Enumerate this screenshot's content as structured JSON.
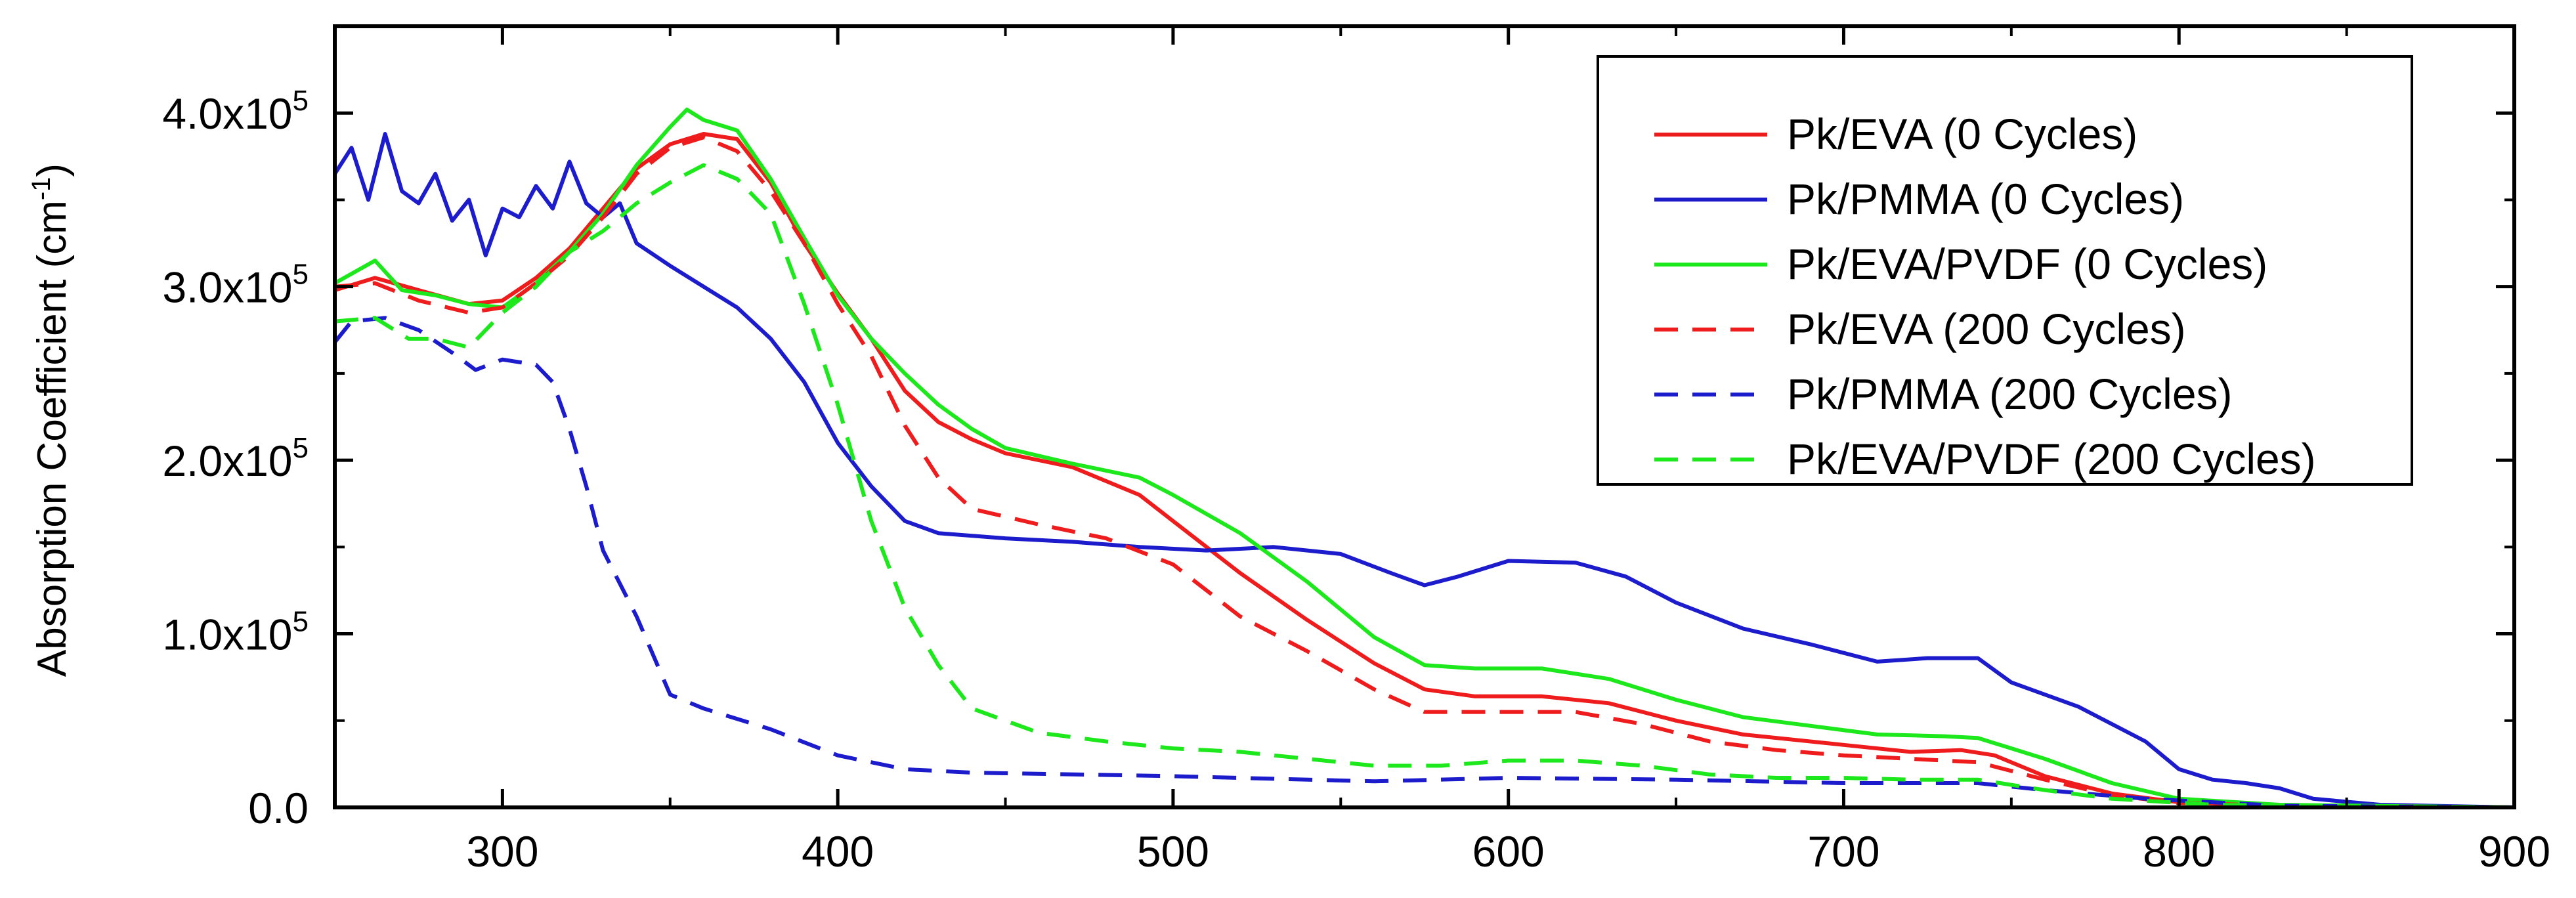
{
  "chart_data": {
    "type": "line",
    "title": "",
    "xlabel": "",
    "ylabel": "Absorption Coefficient (cm",
    "ylabel_sup": "-1",
    "ylabel_close": ")",
    "xlim": [
      250,
      900
    ],
    "ylim": [
      0,
      450000
    ],
    "x_ticks": [
      300,
      400,
      500,
      600,
      700,
      800,
      900
    ],
    "x_tick_labels": [
      "300",
      "400",
      "500",
      "600",
      "700",
      "800",
      "900"
    ],
    "y_ticks": [
      0,
      100000,
      200000,
      300000,
      400000
    ],
    "y_tick_labels": [
      {
        "mant": "0.0",
        "exp": ""
      },
      {
        "mant": "1.0x10",
        "exp": "5"
      },
      {
        "mant": "2.0x10",
        "exp": "5"
      },
      {
        "mant": "3.0x10",
        "exp": "5"
      },
      {
        "mant": "4.0x10",
        "exp": "5"
      }
    ],
    "grid": false,
    "legend_position": "top-right",
    "series": [
      {
        "name": "Pk/EVA (0 Cycles)",
        "color": "#ee1c1c",
        "dash": "solid",
        "points": [
          [
            250,
            298000
          ],
          [
            262,
            305000
          ],
          [
            275,
            298000
          ],
          [
            290,
            290000
          ],
          [
            300,
            292000
          ],
          [
            310,
            305000
          ],
          [
            320,
            322000
          ],
          [
            330,
            345000
          ],
          [
            340,
            368000
          ],
          [
            350,
            382000
          ],
          [
            360,
            388000
          ],
          [
            370,
            385000
          ],
          [
            380,
            360000
          ],
          [
            390,
            325000
          ],
          [
            400,
            296000
          ],
          [
            410,
            270000
          ],
          [
            420,
            240000
          ],
          [
            430,
            222000
          ],
          [
            440,
            212000
          ],
          [
            450,
            204000
          ],
          [
            470,
            196000
          ],
          [
            490,
            180000
          ],
          [
            500,
            165000
          ],
          [
            520,
            135000
          ],
          [
            540,
            108000
          ],
          [
            560,
            83000
          ],
          [
            575,
            68000
          ],
          [
            590,
            64000
          ],
          [
            600,
            64000
          ],
          [
            610,
            64000
          ],
          [
            630,
            60000
          ],
          [
            650,
            50000
          ],
          [
            670,
            42000
          ],
          [
            700,
            36000
          ],
          [
            720,
            32000
          ],
          [
            735,
            33000
          ],
          [
            745,
            30000
          ],
          [
            760,
            18000
          ],
          [
            780,
            8000
          ],
          [
            800,
            3000
          ],
          [
            830,
            1000
          ],
          [
            900,
            0
          ]
        ]
      },
      {
        "name": "Pk/PMMA (0 Cycles)",
        "color": "#1c1ccc",
        "dash": "solid",
        "points": [
          [
            250,
            365000
          ],
          [
            255,
            380000
          ],
          [
            260,
            350000
          ],
          [
            265,
            388000
          ],
          [
            270,
            355000
          ],
          [
            275,
            348000
          ],
          [
            280,
            365000
          ],
          [
            285,
            338000
          ],
          [
            290,
            350000
          ],
          [
            295,
            318000
          ],
          [
            300,
            345000
          ],
          [
            305,
            340000
          ],
          [
            310,
            358000
          ],
          [
            315,
            345000
          ],
          [
            320,
            372000
          ],
          [
            325,
            348000
          ],
          [
            330,
            340000
          ],
          [
            335,
            348000
          ],
          [
            340,
            325000
          ],
          [
            350,
            312000
          ],
          [
            360,
            300000
          ],
          [
            370,
            288000
          ],
          [
            380,
            270000
          ],
          [
            390,
            245000
          ],
          [
            400,
            210000
          ],
          [
            410,
            185000
          ],
          [
            420,
            165000
          ],
          [
            430,
            158000
          ],
          [
            450,
            155000
          ],
          [
            470,
            153000
          ],
          [
            490,
            150000
          ],
          [
            510,
            148000
          ],
          [
            530,
            150000
          ],
          [
            550,
            146000
          ],
          [
            565,
            135000
          ],
          [
            575,
            128000
          ],
          [
            585,
            133000
          ],
          [
            600,
            142000
          ],
          [
            620,
            141000
          ],
          [
            635,
            133000
          ],
          [
            650,
            118000
          ],
          [
            670,
            103000
          ],
          [
            690,
            94000
          ],
          [
            710,
            84000
          ],
          [
            725,
            86000
          ],
          [
            740,
            86000
          ],
          [
            750,
            72000
          ],
          [
            770,
            58000
          ],
          [
            790,
            38000
          ],
          [
            800,
            22000
          ],
          [
            810,
            16000
          ],
          [
            820,
            14000
          ],
          [
            830,
            11000
          ],
          [
            840,
            5000
          ],
          [
            860,
            1500
          ],
          [
            900,
            0
          ]
        ]
      },
      {
        "name": "Pk/EVA/PVDF (0 Cycles)",
        "color": "#1ce81c",
        "dash": "solid",
        "points": [
          [
            250,
            302000
          ],
          [
            262,
            315000
          ],
          [
            270,
            298000
          ],
          [
            280,
            295000
          ],
          [
            290,
            290000
          ],
          [
            300,
            288000
          ],
          [
            310,
            302000
          ],
          [
            320,
            320000
          ],
          [
            330,
            342000
          ],
          [
            340,
            370000
          ],
          [
            350,
            392000
          ],
          [
            355,
            402000
          ],
          [
            360,
            396000
          ],
          [
            370,
            390000
          ],
          [
            380,
            362000
          ],
          [
            390,
            328000
          ],
          [
            400,
            295000
          ],
          [
            410,
            270000
          ],
          [
            420,
            250000
          ],
          [
            430,
            232000
          ],
          [
            440,
            218000
          ],
          [
            450,
            207000
          ],
          [
            470,
            198000
          ],
          [
            490,
            190000
          ],
          [
            500,
            180000
          ],
          [
            520,
            158000
          ],
          [
            540,
            130000
          ],
          [
            560,
            98000
          ],
          [
            575,
            82000
          ],
          [
            590,
            80000
          ],
          [
            610,
            80000
          ],
          [
            630,
            74000
          ],
          [
            650,
            62000
          ],
          [
            670,
            52000
          ],
          [
            690,
            47000
          ],
          [
            710,
            42000
          ],
          [
            730,
            41000
          ],
          [
            740,
            40000
          ],
          [
            760,
            28000
          ],
          [
            780,
            14000
          ],
          [
            800,
            5000
          ],
          [
            830,
            1500
          ],
          [
            900,
            0
          ]
        ]
      },
      {
        "name": "Pk/EVA (200 Cycles)",
        "color": "#ee1c1c",
        "dash": "dashed",
        "points": [
          [
            250,
            300000
          ],
          [
            262,
            302000
          ],
          [
            275,
            292000
          ],
          [
            290,
            285000
          ],
          [
            300,
            288000
          ],
          [
            310,
            302000
          ],
          [
            320,
            318000
          ],
          [
            330,
            340000
          ],
          [
            340,
            365000
          ],
          [
            350,
            380000
          ],
          [
            360,
            386000
          ],
          [
            370,
            378000
          ],
          [
            380,
            355000
          ],
          [
            390,
            325000
          ],
          [
            400,
            290000
          ],
          [
            410,
            260000
          ],
          [
            420,
            220000
          ],
          [
            430,
            190000
          ],
          [
            440,
            172000
          ],
          [
            460,
            163000
          ],
          [
            480,
            155000
          ],
          [
            500,
            140000
          ],
          [
            520,
            110000
          ],
          [
            540,
            90000
          ],
          [
            560,
            68000
          ],
          [
            575,
            55000
          ],
          [
            600,
            55000
          ],
          [
            620,
            55000
          ],
          [
            640,
            48000
          ],
          [
            660,
            38000
          ],
          [
            680,
            33000
          ],
          [
            700,
            30000
          ],
          [
            730,
            27000
          ],
          [
            740,
            26000
          ],
          [
            760,
            16000
          ],
          [
            780,
            7000
          ],
          [
            800,
            2500
          ],
          [
            830,
            1000
          ],
          [
            900,
            0
          ]
        ]
      },
      {
        "name": "Pk/PMMA (200 Cycles)",
        "color": "#1c1ccc",
        "dash": "dashed",
        "points": [
          [
            250,
            268000
          ],
          [
            255,
            280000
          ],
          [
            265,
            282000
          ],
          [
            275,
            275000
          ],
          [
            285,
            262000
          ],
          [
            292,
            252000
          ],
          [
            300,
            258000
          ],
          [
            310,
            255000
          ],
          [
            315,
            245000
          ],
          [
            320,
            218000
          ],
          [
            325,
            185000
          ],
          [
            330,
            148000
          ],
          [
            340,
            110000
          ],
          [
            350,
            65000
          ],
          [
            360,
            57000
          ],
          [
            380,
            45000
          ],
          [
            400,
            30000
          ],
          [
            420,
            22000
          ],
          [
            440,
            20000
          ],
          [
            500,
            18000
          ],
          [
            560,
            15000
          ],
          [
            600,
            17000
          ],
          [
            650,
            16000
          ],
          [
            700,
            14000
          ],
          [
            740,
            14000
          ],
          [
            760,
            10000
          ],
          [
            790,
            5000
          ],
          [
            830,
            1000
          ],
          [
            900,
            0
          ]
        ]
      },
      {
        "name": "Pk/EVA/PVDF (200 Cycles)",
        "color": "#1ce81c",
        "dash": "dashed",
        "points": [
          [
            250,
            280000
          ],
          [
            262,
            282000
          ],
          [
            272,
            270000
          ],
          [
            280,
            270000
          ],
          [
            290,
            265000
          ],
          [
            300,
            285000
          ],
          [
            310,
            300000
          ],
          [
            320,
            320000
          ],
          [
            330,
            332000
          ],
          [
            340,
            348000
          ],
          [
            350,
            360000
          ],
          [
            360,
            370000
          ],
          [
            370,
            362000
          ],
          [
            380,
            342000
          ],
          [
            390,
            290000
          ],
          [
            400,
            232000
          ],
          [
            410,
            165000
          ],
          [
            420,
            115000
          ],
          [
            430,
            82000
          ],
          [
            440,
            57000
          ],
          [
            460,
            43000
          ],
          [
            480,
            38000
          ],
          [
            500,
            34000
          ],
          [
            520,
            32000
          ],
          [
            540,
            28000
          ],
          [
            560,
            24000
          ],
          [
            580,
            24000
          ],
          [
            600,
            27000
          ],
          [
            620,
            27000
          ],
          [
            640,
            24000
          ],
          [
            660,
            19000
          ],
          [
            680,
            17000
          ],
          [
            700,
            17000
          ],
          [
            720,
            16000
          ],
          [
            740,
            16000
          ],
          [
            760,
            10000
          ],
          [
            780,
            5000
          ],
          [
            810,
            1500
          ],
          [
            900,
            0
          ]
        ]
      }
    ]
  }
}
